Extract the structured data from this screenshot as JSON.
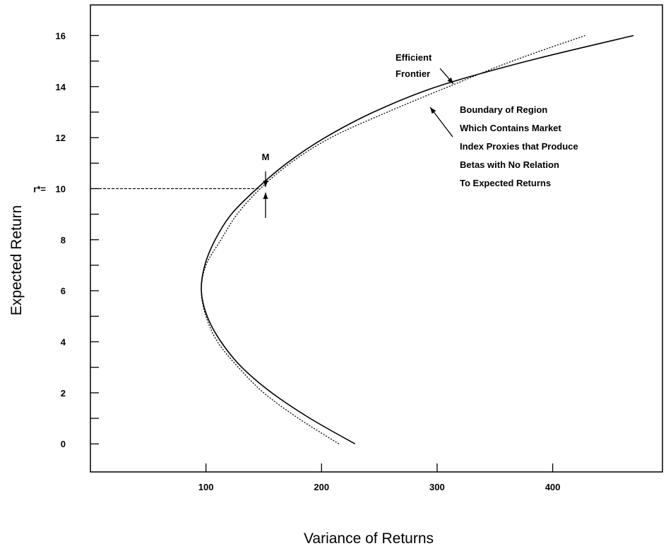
{
  "chart_data": {
    "type": "line",
    "title": "",
    "xlabel": "Variance of Returns",
    "ylabel": "Expected Return",
    "xlim": [
      0,
      495
    ],
    "ylim": [
      -1.1,
      17.2
    ],
    "x_ticks": [
      100,
      200,
      300,
      400
    ],
    "y_ticks": [
      0,
      2,
      4,
      6,
      8,
      10,
      12,
      14,
      16
    ],
    "y_minor_ticks": [
      1,
      3,
      5,
      7,
      9,
      11,
      13,
      15
    ],
    "grid": false,
    "legend": "none",
    "series": [
      {
        "style": "dotted",
        "points": [
          [
            215,
            0
          ],
          [
            180,
            1
          ],
          [
            150,
            2
          ],
          [
            128,
            3
          ],
          [
            110,
            4
          ],
          [
            100,
            5
          ],
          [
            96,
            6
          ],
          [
            100,
            7
          ],
          [
            113,
            8
          ],
          [
            127,
            9
          ],
          [
            147,
            10
          ],
          [
            173,
            11
          ],
          [
            208,
            12
          ],
          [
            257,
            13
          ],
          [
            310,
            14
          ],
          [
            365,
            15
          ],
          [
            428,
            16
          ]
        ]
      },
      {
        "style": "solid",
        "points": [
          [
            229,
            0
          ],
          [
            190,
            1
          ],
          [
            157,
            2
          ],
          [
            131,
            3
          ],
          [
            113,
            4
          ],
          [
            101,
            5
          ],
          [
            96,
            6
          ],
          [
            99,
            7
          ],
          [
            108,
            8
          ],
          [
            122,
            9
          ],
          [
            144,
            10
          ],
          [
            170,
            11
          ],
          [
            203,
            12
          ],
          [
            245,
            13
          ],
          [
            300,
            14
          ],
          [
            378,
            15
          ],
          [
            470,
            16
          ]
        ]
      }
    ],
    "reference_line": {
      "y": 10,
      "x_end": 147,
      "label": "r*="
    },
    "annotations": [
      {
        "text": "M"
      },
      {
        "lines": [
          "Efficient",
          "Frontier"
        ]
      },
      {
        "lines": [
          "Boundary of Region",
          "Which Contains Market",
          "Index Proxies that Produce",
          "Betas with No Relation",
          "To Expected Returns"
        ]
      }
    ]
  }
}
